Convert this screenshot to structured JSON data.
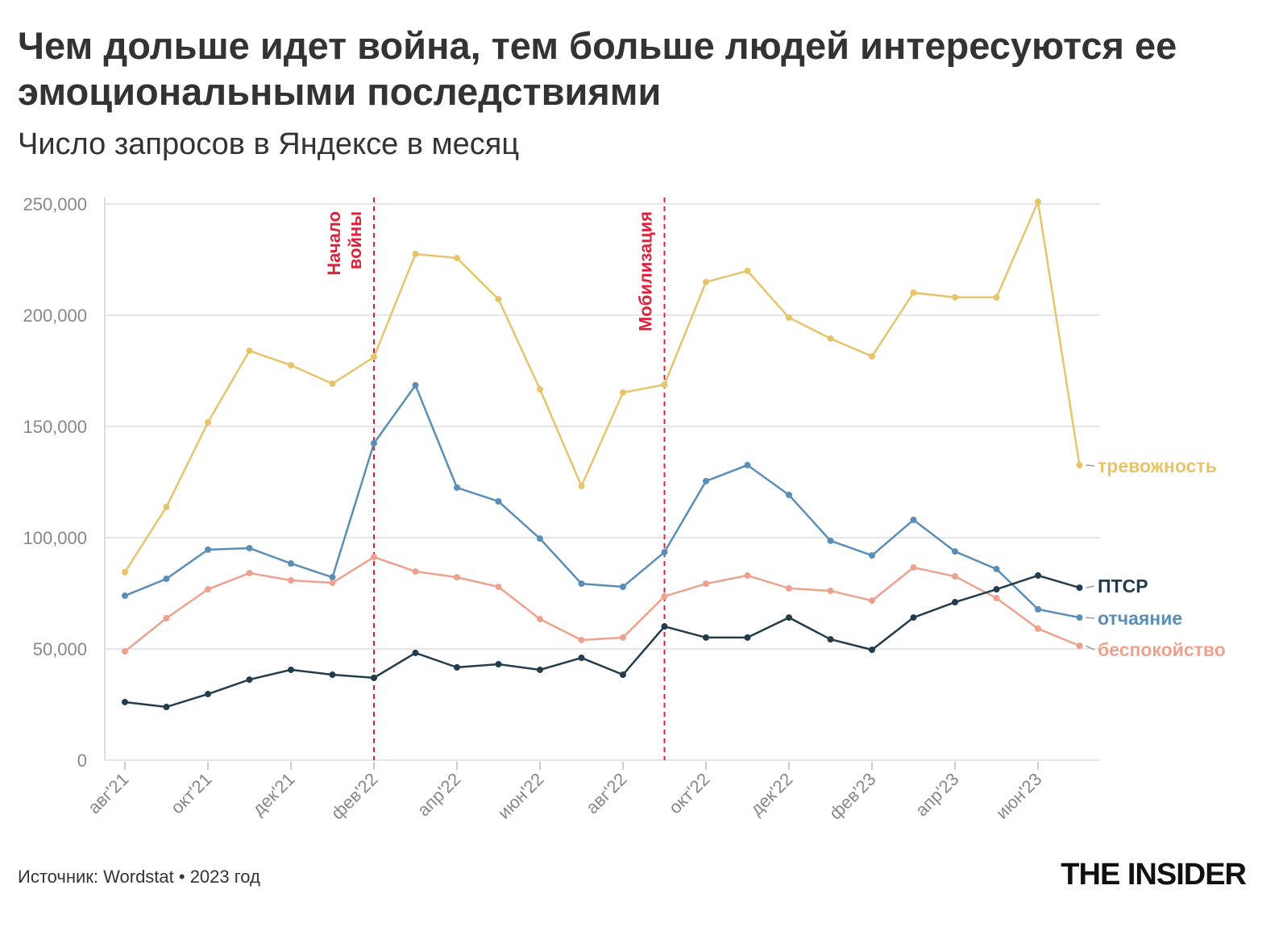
{
  "title": "Чем дольше идет война, тем больше людей интересуются ее эмоциональными последствиями",
  "subtitle": "Число запросов в Яндексе в месяц",
  "source": "Источник: Wordstat • 2023 год",
  "logo": "THE INSIDER",
  "chart_data": {
    "type": "line",
    "title": "Чем дольше идет война, тем больше людей интересуются ее эмоциональными последствиями",
    "subtitle": "Число запросов в Яндексе в месяц",
    "x": [
      "авг'21",
      "сен'21",
      "окт'21",
      "ноя'21",
      "дек'21",
      "янв'22",
      "фев'22",
      "мар'22",
      "апр'22",
      "май'22",
      "июн'22",
      "июл'22",
      "авг'22",
      "сен'22",
      "окт'22",
      "ноя'22",
      "дек'22",
      "янв'23",
      "фев'23",
      "мар'23",
      "апр'23",
      "май'23",
      "июн'23",
      "июл'23"
    ],
    "xtick_labels": [
      "авг'21",
      "окт'21",
      "дек'21",
      "фев'22",
      "апр'22",
      "июн'22",
      "авг'22",
      "окт'22",
      "дек'22",
      "фев'23",
      "апр'23",
      "июн'23"
    ],
    "yticks": [
      0,
      50000,
      100000,
      150000,
      200000,
      250000
    ],
    "ytick_labels": [
      "0",
      "50,000",
      "100,000",
      "150,000",
      "200,000",
      "250,000"
    ],
    "ylim": [
      0,
      250000
    ],
    "grid": true,
    "legend": "direct labels at right end of lines",
    "series": [
      {
        "name": "тревожность",
        "color": "#e6c46c",
        "values": [
          84500,
          113800,
          151800,
          184000,
          177500,
          169200,
          181200,
          227500,
          225700,
          207200,
          166700,
          123200,
          165200,
          168800,
          214900,
          219900,
          198900,
          189500,
          181500,
          210100,
          208000,
          208000,
          251000,
          132600
        ]
      },
      {
        "name": "отчаяние",
        "color": "#5b8eb6",
        "values": [
          73900,
          81500,
          94600,
          95300,
          88400,
          82200,
          142400,
          168500,
          122500,
          116300,
          99600,
          79300,
          77900,
          93500,
          125400,
          132600,
          119200,
          98600,
          92000,
          108000,
          93800,
          85900,
          67800,
          64100
        ]
      },
      {
        "name": "беспокойство",
        "color": "#eda28f",
        "values": [
          48900,
          63800,
          76800,
          84100,
          80800,
          79700,
          91300,
          84800,
          82200,
          77900,
          63400,
          54000,
          55100,
          73600,
          79300,
          83000,
          77200,
          76100,
          71700,
          86600,
          82600,
          72800,
          59100,
          51400
        ]
      },
      {
        "name": "ПТСР",
        "color": "#223c4c",
        "values": [
          26100,
          23900,
          29700,
          36200,
          40600,
          38400,
          37000,
          48200,
          41700,
          43100,
          40600,
          46000,
          38400,
          60100,
          55100,
          55100,
          64100,
          54300,
          49600,
          64100,
          71000,
          76800,
          83000,
          77500
        ]
      }
    ],
    "annotations": [
      {
        "x": "фев'22",
        "text": "Начало войны",
        "lines": [
          "Начало",
          "войны"
        ],
        "color": "#e0203a"
      },
      {
        "x": "сен'22",
        "text": "Мобилизация",
        "lines": [
          "Мобилизация"
        ],
        "color": "#e0203a"
      }
    ]
  }
}
